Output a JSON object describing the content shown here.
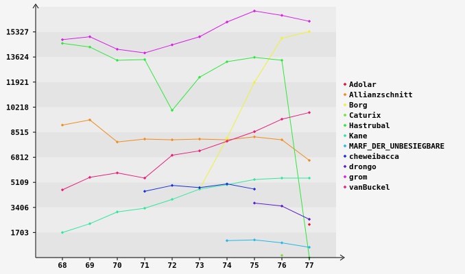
{
  "chart_data": {
    "type": "line",
    "title": "",
    "xlabel": "",
    "ylabel": "",
    "x": [
      "68",
      "69",
      "70",
      "71",
      "72",
      "73",
      "74",
      "75",
      "76",
      "77"
    ],
    "y_ticks": [
      "1703",
      "3406",
      "5109",
      "6812",
      "8515",
      "10218",
      "11921",
      "13624",
      "15327"
    ],
    "ylim": [
      0,
      17030
    ],
    "grid": true,
    "legend_position": "right",
    "series": [
      {
        "name": "Adolar",
        "color": "#e8102a",
        "values": [
          null,
          null,
          null,
          null,
          null,
          null,
          null,
          null,
          null,
          2250
        ]
      },
      {
        "name": "Allianzschnitt",
        "color": "#f08c1e",
        "values": [
          9000,
          9350,
          7850,
          8050,
          8000,
          8050,
          8000,
          8200,
          8000,
          6600
        ]
      },
      {
        "name": "Borg",
        "color": "#eef238",
        "values": [
          null,
          null,
          null,
          null,
          null,
          4650,
          8100,
          11900,
          14900,
          15350
        ]
      },
      {
        "name": "Caturix",
        "color": "#74e236",
        "values": [
          null,
          null,
          null,
          null,
          null,
          null,
          null,
          null,
          150,
          null
        ]
      },
      {
        "name": "Hastrubal",
        "color": "#2ce83a",
        "values": [
          14550,
          14300,
          13400,
          13450,
          10000,
          12250,
          13300,
          13600,
          13400,
          0
        ]
      },
      {
        "name": "Kane",
        "color": "#2ee89e",
        "values": [
          1700,
          2300,
          3100,
          3350,
          3950,
          4650,
          4950,
          5300,
          5400,
          5400
        ]
      },
      {
        "name": "MARF_DER_UNBESIEGBARE",
        "color": "#20b8e8",
        "values": [
          null,
          null,
          null,
          null,
          null,
          null,
          1150,
          1200,
          1000,
          700
        ]
      },
      {
        "name": "cheweibacca",
        "color": "#1630d8",
        "values": [
          null,
          null,
          null,
          4500,
          4900,
          4750,
          5000,
          4650,
          null,
          null
        ]
      },
      {
        "name": "drongo",
        "color": "#5a1ed0",
        "values": [
          null,
          null,
          null,
          null,
          null,
          null,
          null,
          3700,
          3500,
          2600
        ]
      },
      {
        "name": "grom",
        "color": "#d81ee8",
        "values": [
          14800,
          15000,
          14150,
          13900,
          14450,
          15000,
          16000,
          16750,
          16450,
          16050
        ]
      },
      {
        "name": "vanBuckel",
        "color": "#e81e7a",
        "values": [
          4600,
          5450,
          5750,
          5400,
          6950,
          7250,
          7900,
          8550,
          9400,
          9850
        ]
      }
    ]
  }
}
